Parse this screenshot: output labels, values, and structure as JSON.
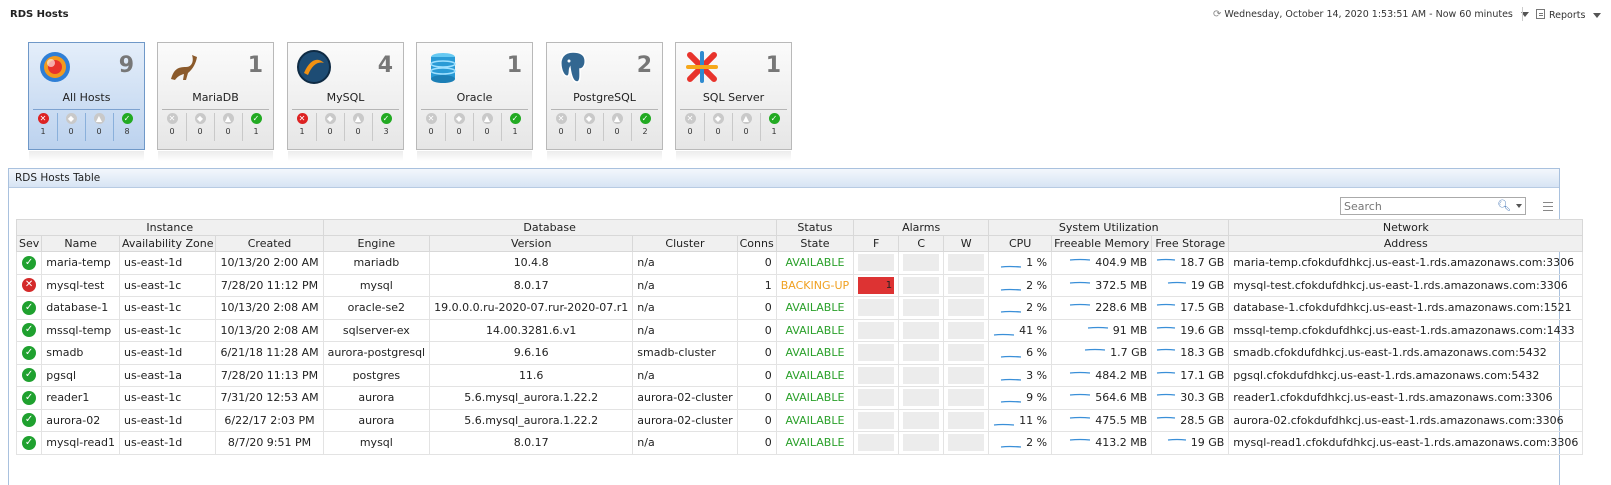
{
  "header": {
    "title": "RDS Hosts",
    "time_range": "Wednesday, October 14, 2020 1:53:51 AM - Now 60 minutes",
    "reports_label": "Reports"
  },
  "tiles": [
    {
      "name": "All Hosts",
      "count": "9",
      "logo": "all-hosts-icon",
      "sev": [
        "1",
        "0",
        "0",
        "8"
      ]
    },
    {
      "name": "MariaDB",
      "count": "1",
      "logo": "mariadb-icon",
      "sev": [
        "0",
        "0",
        "0",
        "1"
      ]
    },
    {
      "name": "MySQL",
      "count": "4",
      "logo": "mysql-icon",
      "sev": [
        "1",
        "0",
        "0",
        "3"
      ]
    },
    {
      "name": "Oracle",
      "count": "1",
      "logo": "oracle-icon",
      "sev": [
        "0",
        "0",
        "0",
        "1"
      ]
    },
    {
      "name": "PostgreSQL",
      "count": "2",
      "logo": "postgresql-icon",
      "sev": [
        "0",
        "0",
        "0",
        "2"
      ]
    },
    {
      "name": "SQL Server",
      "count": "1",
      "logo": "sqlserver-icon",
      "sev": [
        "0",
        "0",
        "0",
        "1"
      ]
    }
  ],
  "table": {
    "title": "RDS Hosts Table",
    "search_placeholder": "Search",
    "groups": [
      "Instance",
      "Database",
      "Status",
      "Alarms",
      "System Utilization",
      "Network"
    ],
    "columns": [
      "Sev",
      "Name",
      "Availability Zone",
      "Created",
      "Engine",
      "Version",
      "Cluster",
      "Conns",
      "State",
      "F",
      "C",
      "W",
      "CPU",
      "Freeable Memory",
      "Free Storage",
      "Address"
    ],
    "rows": [
      {
        "sev": "ok",
        "name": "maria-temp",
        "zone": "us-east-1d",
        "created": "10/13/20 2:00 AM",
        "engine": "mariadb",
        "version": "10.4.8",
        "cluster": "n/a",
        "conns": "0",
        "state": "AVAILABLE",
        "f": "",
        "cpu": "1 %",
        "mem": "404.9 MB",
        "storage": "18.7 GB",
        "address": "maria-temp.cfokdufdhkcj.us-east-1.rds.amazonaws.com:3306"
      },
      {
        "sev": "crit",
        "name": "mysql-test",
        "zone": "us-east-1c",
        "created": "7/28/20 11:12 PM",
        "engine": "mysql",
        "version": "8.0.17",
        "cluster": "n/a",
        "conns": "1",
        "state": "BACKING-UP",
        "f": "1",
        "cpu": "2 %",
        "mem": "372.5 MB",
        "storage": "19 GB",
        "address": "mysql-test.cfokdufdhkcj.us-east-1.rds.amazonaws.com:3306"
      },
      {
        "sev": "ok",
        "name": "database-1",
        "zone": "us-east-1c",
        "created": "10/13/20 2:08 AM",
        "engine": "oracle-se2",
        "version": "19.0.0.0.ru-2020-07.rur-2020-07.r1",
        "cluster": "n/a",
        "conns": "0",
        "state": "AVAILABLE",
        "f": "",
        "cpu": "2 %",
        "mem": "228.6 MB",
        "storage": "17.5 GB",
        "address": "database-1.cfokdufdhkcj.us-east-1.rds.amazonaws.com:1521"
      },
      {
        "sev": "ok",
        "name": "mssql-temp",
        "zone": "us-east-1c",
        "created": "10/13/20 2:08 AM",
        "engine": "sqlserver-ex",
        "version": "14.00.3281.6.v1",
        "cluster": "n/a",
        "conns": "0",
        "state": "AVAILABLE",
        "f": "",
        "cpu": "41 %",
        "mem": "91 MB",
        "storage": "19.6 GB",
        "address": "mssql-temp.cfokdufdhkcj.us-east-1.rds.amazonaws.com:1433"
      },
      {
        "sev": "ok",
        "name": "smadb",
        "zone": "us-east-1d",
        "created": "6/21/18 11:28 AM",
        "engine": "aurora-postgresql",
        "version": "9.6.16",
        "cluster": "smadb-cluster",
        "conns": "0",
        "state": "AVAILABLE",
        "f": "",
        "cpu": "6 %",
        "mem": "1.7 GB",
        "storage": "18.3 GB",
        "address": "smadb.cfokdufdhkcj.us-east-1.rds.amazonaws.com:5432"
      },
      {
        "sev": "ok",
        "name": "pgsql",
        "zone": "us-east-1a",
        "created": "7/28/20 11:13 PM",
        "engine": "postgres",
        "version": "11.6",
        "cluster": "n/a",
        "conns": "0",
        "state": "AVAILABLE",
        "f": "",
        "cpu": "3 %",
        "mem": "484.2 MB",
        "storage": "17.1 GB",
        "address": "pgsql.cfokdufdhkcj.us-east-1.rds.amazonaws.com:5432"
      },
      {
        "sev": "ok",
        "name": "reader1",
        "zone": "us-east-1c",
        "created": "7/31/20 12:53 AM",
        "engine": "aurora",
        "version": "5.6.mysql_aurora.1.22.2",
        "cluster": "aurora-02-cluster",
        "conns": "0",
        "state": "AVAILABLE",
        "f": "",
        "cpu": "9 %",
        "mem": "564.6 MB",
        "storage": "30.3 GB",
        "address": "reader1.cfokdufdhkcj.us-east-1.rds.amazonaws.com:3306"
      },
      {
        "sev": "ok",
        "name": "aurora-02",
        "zone": "us-east-1d",
        "created": "6/22/17 2:03 PM",
        "engine": "aurora",
        "version": "5.6.mysql_aurora.1.22.2",
        "cluster": "aurora-02-cluster",
        "conns": "0",
        "state": "AVAILABLE",
        "f": "",
        "cpu": "11 %",
        "mem": "475.5 MB",
        "storage": "28.5 GB",
        "address": "aurora-02.cfokdufdhkcj.us-east-1.rds.amazonaws.com:3306"
      },
      {
        "sev": "ok",
        "name": "mysql-read1",
        "zone": "us-east-1d",
        "created": "8/7/20 9:51 PM",
        "engine": "mysql",
        "version": "8.0.17",
        "cluster": "n/a",
        "conns": "0",
        "state": "AVAILABLE",
        "f": "",
        "cpu": "2 %",
        "mem": "413.2 MB",
        "storage": "19 GB",
        "address": "mysql-read1.cfokdufdhkcj.us-east-1.rds.amazonaws.com:3306"
      }
    ]
  },
  "colors": {
    "ok": "#1fa12f",
    "critical": "#d42a2a",
    "available": "#2aa02a",
    "backing_up": "#f0a020",
    "sparkline": "#3a8fd8"
  }
}
